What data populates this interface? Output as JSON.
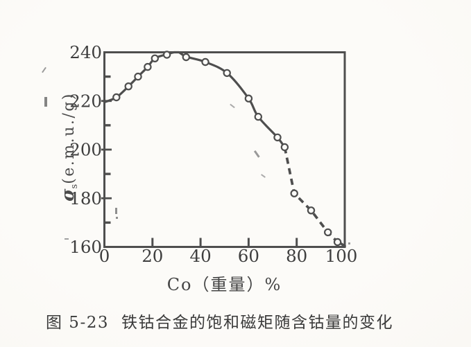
{
  "figure": {
    "caption_number": "图 5-23",
    "caption_title": "铁钴合金的饱和磁矩随含钴量的变化"
  },
  "chart_data": {
    "type": "line",
    "title": "",
    "xlabel": "Co（重量）%",
    "ylabel": "σs(e.m.u./g)",
    "ylabel_symbol": "σ",
    "ylabel_subscript": "s",
    "ylabel_units": "(e.m.u./g)",
    "xlim": [
      0,
      100
    ],
    "ylim": [
      160,
      240
    ],
    "grid": false,
    "legend": false,
    "x_ticks_labeled": [
      0,
      20,
      40,
      60,
      80,
      100
    ],
    "y_ticks_labeled": [
      160,
      180,
      200,
      220,
      240
    ],
    "x_ticks_inner": [
      20,
      40,
      60,
      80
    ],
    "y_ticks_major_inner": [
      180,
      200,
      220
    ],
    "y_ticks_minor": [
      170,
      190,
      210,
      230
    ],
    "series": [
      {
        "name": "saturation-magnetic-moment-vs-co-content",
        "marker": "open-circle",
        "points": [
          [
            5,
            221.5
          ],
          [
            10,
            226
          ],
          [
            14,
            230
          ],
          [
            18,
            234
          ],
          [
            21,
            237.5
          ],
          [
            26,
            239
          ],
          [
            34,
            238
          ],
          [
            42,
            236
          ],
          [
            51,
            231.5
          ],
          [
            60,
            221
          ],
          [
            64,
            213.5
          ],
          [
            72,
            205
          ],
          [
            75,
            201
          ],
          [
            79,
            182
          ],
          [
            86,
            175
          ],
          [
            93,
            166
          ],
          [
            97,
            162
          ]
        ],
        "curve_solid": [
          [
            0,
            219.5
          ],
          [
            5,
            221.5
          ],
          [
            10,
            226
          ],
          [
            14,
            230
          ],
          [
            18,
            234
          ],
          [
            21,
            237.5
          ],
          [
            26,
            239.2
          ],
          [
            29,
            240
          ],
          [
            31,
            240
          ],
          [
            34,
            238.2
          ],
          [
            42,
            236
          ],
          [
            51,
            231.5
          ],
          [
            60,
            221
          ],
          [
            64,
            213.5
          ],
          [
            72,
            205
          ],
          [
            75,
            201
          ]
        ],
        "curve_dashed": [
          [
            75,
            201
          ],
          [
            79,
            182
          ],
          [
            86,
            175
          ],
          [
            93,
            166
          ],
          [
            96,
            163
          ]
        ],
        "curve_solid_tail": [
          [
            96,
            163
          ],
          [
            100,
            160.3
          ]
        ]
      }
    ],
    "ink_color": "#4e4e4e",
    "label_color": "#3e3e3e",
    "paper_color": "#fcfbf8"
  }
}
